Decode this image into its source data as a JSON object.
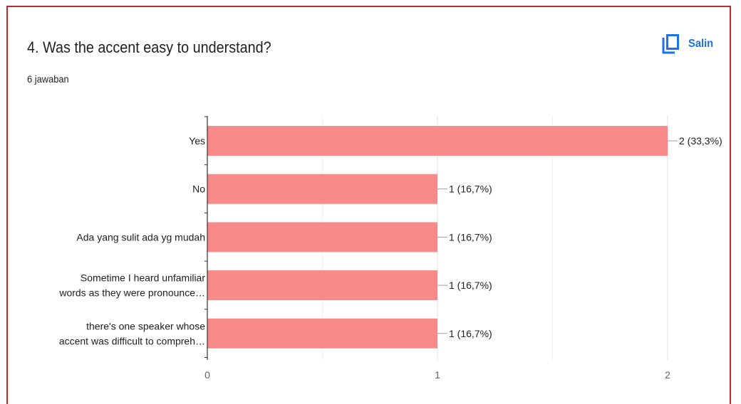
{
  "question": {
    "title": "4. Was the accent easy to understand?",
    "responses": "6 jawaban"
  },
  "actions": {
    "copy_label": "Salin",
    "copy_icon": "copy-icon",
    "accent": "#1a73e8"
  },
  "chart_data": {
    "type": "bar",
    "orientation": "horizontal",
    "categories": [
      [
        "Yes"
      ],
      [
        "No"
      ],
      [
        "Ada yang sulit ada yg mudah"
      ],
      [
        "Sometime I heard unfamiliar",
        "words as they were pronounce…"
      ],
      [
        "there's one speaker whose",
        "accent was difficult to compreh…"
      ]
    ],
    "values": [
      2,
      1,
      1,
      1,
      1
    ],
    "data_labels": [
      "2 (33,3%)",
      "1 (16,7%)",
      "1 (16,7%)",
      "1 (16,7%)",
      "1 (16,7%)"
    ],
    "xlim": [
      0,
      2
    ],
    "x_ticks": [
      "0",
      "1",
      "2"
    ],
    "bar_color": "#f88a8a",
    "grid": true
  }
}
